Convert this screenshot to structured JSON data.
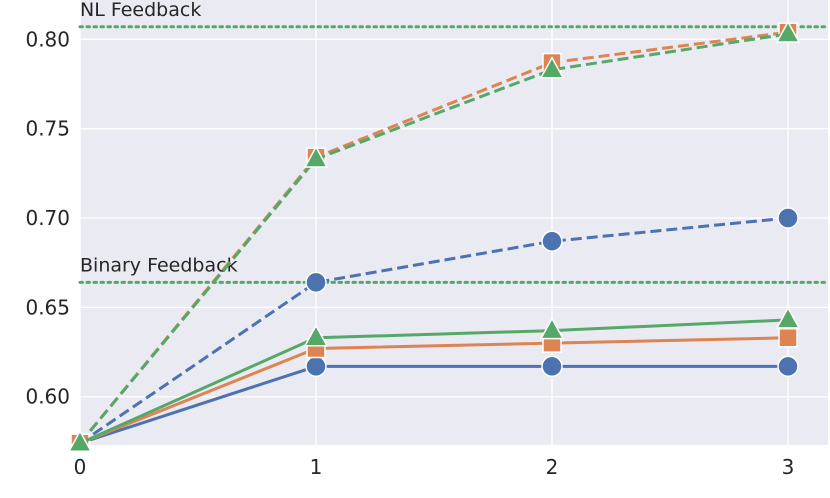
{
  "chart_data": {
    "type": "line",
    "title": "",
    "xlabel": "",
    "ylabel": "",
    "x": [
      0,
      1,
      2,
      3
    ],
    "xlim": [
      0,
      3
    ],
    "ylim": [
      0.573,
      0.822
    ],
    "xticks": [
      "0",
      "1",
      "2",
      "3"
    ],
    "yticks": [
      "0.60",
      "0.65",
      "0.70",
      "0.75",
      "0.80"
    ],
    "ytick_values": [
      0.6,
      0.65,
      0.7,
      0.75,
      0.8
    ],
    "grid": true,
    "background": "#eaeaf2",
    "series": [
      {
        "color": "#4c72b0",
        "marker": "circle",
        "linestyle": "dashed",
        "values": [
          0.574,
          0.664,
          0.687,
          0.7
        ]
      },
      {
        "color": "#dd8452",
        "marker": "square",
        "linestyle": "dashed",
        "values": [
          0.574,
          0.734,
          0.787,
          0.804
        ]
      },
      {
        "color": "#55a868",
        "marker": "triangle",
        "linestyle": "dashed",
        "values": [
          0.574,
          0.733,
          0.783,
          0.803
        ]
      },
      {
        "color": "#4c72b0",
        "marker": "circle",
        "linestyle": "solid",
        "values": [
          0.574,
          0.617,
          0.617,
          0.617
        ]
      },
      {
        "color": "#dd8452",
        "marker": "square",
        "linestyle": "solid",
        "values": [
          0.574,
          0.627,
          0.63,
          0.633
        ]
      },
      {
        "color": "#55a868",
        "marker": "triangle",
        "linestyle": "solid",
        "values": [
          0.574,
          0.633,
          0.637,
          0.643
        ]
      }
    ],
    "reference_lines": [
      {
        "label": "NL Feedback",
        "value": 0.807,
        "color": "#55a868",
        "linestyle": "dotted"
      },
      {
        "label": "Binary Feedback",
        "value": 0.664,
        "color": "#55a868",
        "linestyle": "dotted"
      }
    ]
  }
}
